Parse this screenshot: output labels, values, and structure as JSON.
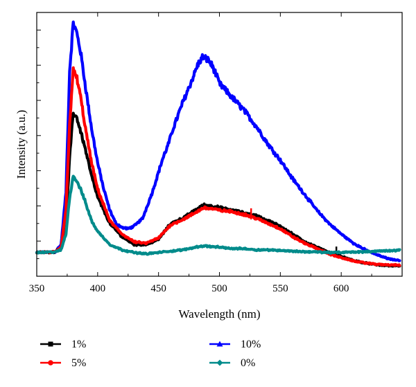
{
  "chart_data": {
    "type": "line",
    "title": "",
    "xlabel": "Wavelength (nm)",
    "ylabel": "Intensity (a.u.)",
    "xlim": [
      350,
      650
    ],
    "ylim": [
      0,
      1
    ],
    "x_ticks": [
      350,
      400,
      450,
      500,
      550,
      600
    ],
    "grid": false,
    "legend_position": "bottom",
    "series": [
      {
        "name": "1%",
        "color": "#000000",
        "marker": "square",
        "points": [
          [
            350,
            0.09
          ],
          [
            365,
            0.092
          ],
          [
            370,
            0.11
          ],
          [
            374,
            0.2
          ],
          [
            377,
            0.45
          ],
          [
            380,
            0.62
          ],
          [
            383,
            0.6
          ],
          [
            386,
            0.55
          ],
          [
            390,
            0.48
          ],
          [
            395,
            0.38
          ],
          [
            400,
            0.3
          ],
          [
            410,
            0.2
          ],
          [
            420,
            0.15
          ],
          [
            430,
            0.12
          ],
          [
            440,
            0.12
          ],
          [
            450,
            0.14
          ],
          [
            455,
            0.17
          ],
          [
            460,
            0.2
          ],
          [
            470,
            0.22
          ],
          [
            480,
            0.25
          ],
          [
            487,
            0.27
          ],
          [
            495,
            0.265
          ],
          [
            500,
            0.26
          ],
          [
            510,
            0.25
          ],
          [
            520,
            0.24
          ],
          [
            530,
            0.23
          ],
          [
            540,
            0.21
          ],
          [
            550,
            0.19
          ],
          [
            560,
            0.16
          ],
          [
            570,
            0.13
          ],
          [
            580,
            0.11
          ],
          [
            590,
            0.09
          ],
          [
            600,
            0.075
          ],
          [
            610,
            0.06
          ],
          [
            620,
            0.05
          ],
          [
            630,
            0.043
          ],
          [
            640,
            0.04
          ],
          [
            648,
            0.039
          ]
        ],
        "annotation_marks": [
          596
        ]
      },
      {
        "name": "5%",
        "color": "#ff0000",
        "marker": "circle",
        "points": [
          [
            350,
            0.09
          ],
          [
            365,
            0.092
          ],
          [
            370,
            0.11
          ],
          [
            374,
            0.25
          ],
          [
            377,
            0.58
          ],
          [
            380,
            0.78
          ],
          [
            383,
            0.75
          ],
          [
            386,
            0.68
          ],
          [
            390,
            0.56
          ],
          [
            395,
            0.43
          ],
          [
            400,
            0.33
          ],
          [
            410,
            0.21
          ],
          [
            420,
            0.16
          ],
          [
            430,
            0.13
          ],
          [
            440,
            0.125
          ],
          [
            450,
            0.145
          ],
          [
            455,
            0.17
          ],
          [
            460,
            0.195
          ],
          [
            470,
            0.215
          ],
          [
            480,
            0.24
          ],
          [
            487,
            0.26
          ],
          [
            495,
            0.255
          ],
          [
            500,
            0.25
          ],
          [
            510,
            0.245
          ],
          [
            520,
            0.235
          ],
          [
            530,
            0.22
          ],
          [
            540,
            0.2
          ],
          [
            550,
            0.18
          ],
          [
            560,
            0.15
          ],
          [
            570,
            0.125
          ],
          [
            580,
            0.105
          ],
          [
            590,
            0.085
          ],
          [
            600,
            0.07
          ],
          [
            610,
            0.058
          ],
          [
            620,
            0.05
          ],
          [
            630,
            0.045
          ],
          [
            640,
            0.043
          ],
          [
            648,
            0.042
          ]
        ],
        "annotation_marks": [
          526
        ]
      },
      {
        "name": "10%",
        "color": "#0000ff",
        "marker": "triangle",
        "points": [
          [
            350,
            0.09
          ],
          [
            365,
            0.092
          ],
          [
            370,
            0.12
          ],
          [
            374,
            0.32
          ],
          [
            377,
            0.78
          ],
          [
            380,
            0.96
          ],
          [
            383,
            0.92
          ],
          [
            386,
            0.85
          ],
          [
            390,
            0.72
          ],
          [
            395,
            0.56
          ],
          [
            400,
            0.43
          ],
          [
            405,
            0.33
          ],
          [
            410,
            0.25
          ],
          [
            415,
            0.2
          ],
          [
            420,
            0.185
          ],
          [
            425,
            0.18
          ],
          [
            430,
            0.19
          ],
          [
            437,
            0.22
          ],
          [
            445,
            0.32
          ],
          [
            453,
            0.44
          ],
          [
            458,
            0.5
          ],
          [
            462,
            0.56
          ],
          [
            470,
            0.66
          ],
          [
            478,
            0.75
          ],
          [
            482,
            0.8
          ],
          [
            486,
            0.83
          ],
          [
            491,
            0.82
          ],
          [
            495,
            0.79
          ],
          [
            500,
            0.73
          ],
          [
            510,
            0.68
          ],
          [
            520,
            0.63
          ],
          [
            530,
            0.57
          ],
          [
            540,
            0.5
          ],
          [
            550,
            0.44
          ],
          [
            560,
            0.37
          ],
          [
            570,
            0.31
          ],
          [
            580,
            0.25
          ],
          [
            590,
            0.2
          ],
          [
            600,
            0.16
          ],
          [
            610,
            0.125
          ],
          [
            620,
            0.1
          ],
          [
            630,
            0.08
          ],
          [
            640,
            0.065
          ],
          [
            648,
            0.06
          ]
        ]
      },
      {
        "name": "0%",
        "color": "#008b8b",
        "marker": "diamond",
        "points": [
          [
            350,
            0.09
          ],
          [
            365,
            0.092
          ],
          [
            370,
            0.1
          ],
          [
            374,
            0.16
          ],
          [
            377,
            0.3
          ],
          [
            380,
            0.38
          ],
          [
            383,
            0.36
          ],
          [
            386,
            0.33
          ],
          [
            390,
            0.28
          ],
          [
            395,
            0.21
          ],
          [
            400,
            0.17
          ],
          [
            410,
            0.12
          ],
          [
            420,
            0.1
          ],
          [
            430,
            0.09
          ],
          [
            440,
            0.085
          ],
          [
            450,
            0.09
          ],
          [
            460,
            0.095
          ],
          [
            470,
            0.1
          ],
          [
            480,
            0.11
          ],
          [
            487,
            0.115
          ],
          [
            500,
            0.11
          ],
          [
            510,
            0.105
          ],
          [
            520,
            0.105
          ],
          [
            530,
            0.1
          ],
          [
            540,
            0.1
          ],
          [
            550,
            0.098
          ],
          [
            560,
            0.095
          ],
          [
            570,
            0.093
          ],
          [
            580,
            0.092
          ],
          [
            590,
            0.09
          ],
          [
            600,
            0.09
          ],
          [
            610,
            0.092
          ],
          [
            620,
            0.093
          ],
          [
            630,
            0.095
          ],
          [
            640,
            0.097
          ],
          [
            648,
            0.098
          ]
        ]
      }
    ]
  }
}
